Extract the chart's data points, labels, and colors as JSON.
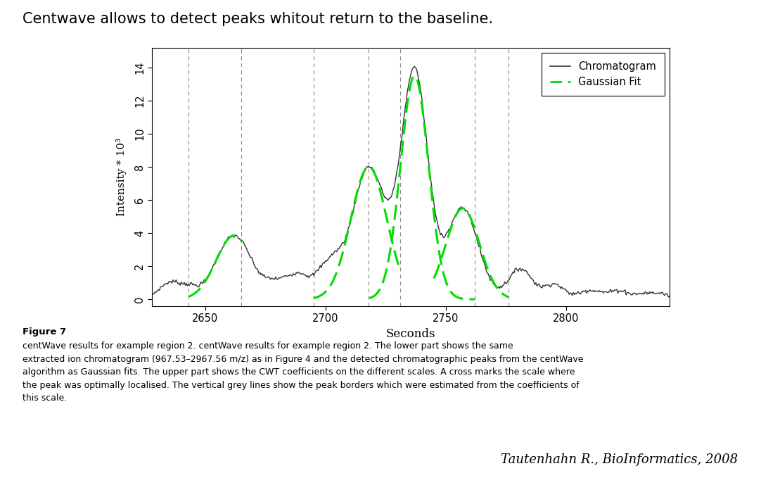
{
  "title": "Centwave allows to detect peaks whitout return to the baseline.",
  "xlabel": "Seconds",
  "ylabel": "Intensity * 10³",
  "xlim": [
    2628,
    2843
  ],
  "ylim": [
    -0.4,
    15.2
  ],
  "yticks": [
    0,
    2,
    4,
    6,
    8,
    10,
    12,
    14
  ],
  "xticks": [
    2650,
    2700,
    2750,
    2800
  ],
  "vlines": [
    2643,
    2665,
    2695,
    2718,
    2731,
    2762,
    2776
  ],
  "chromatogram_color": "#333333",
  "gaussian_color": "#00dd00",
  "figure_caption_bold": "Figure 7",
  "citation": "Tautenhahn R., BioInformatics, 2008"
}
